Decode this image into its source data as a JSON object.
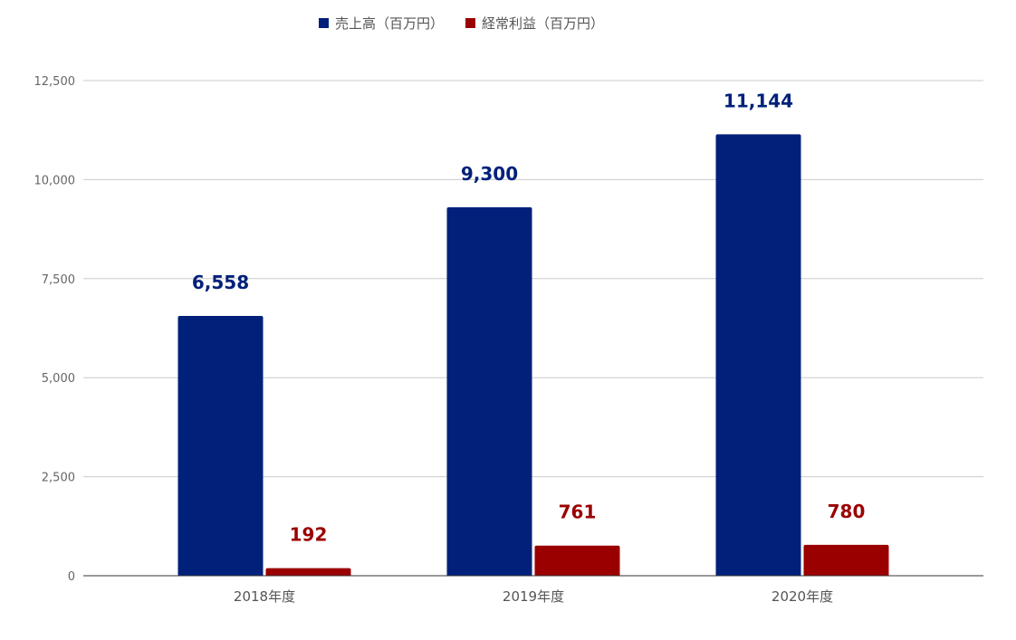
{
  "chart_data": {
    "type": "bar",
    "categories": [
      "2018年度",
      "2019年度",
      "2020年度"
    ],
    "series": [
      {
        "name": "売上高（百万円）",
        "values": [
          6558,
          9300,
          11144
        ],
        "labels": [
          "6,558",
          "9,300",
          "11,144"
        ],
        "color": "#00207a"
      },
      {
        "name": "経常利益（百万円）",
        "values": [
          192,
          761,
          780
        ],
        "labels": [
          "192",
          "761",
          "780"
        ],
        "color": "#9b0000"
      }
    ],
    "yticks": [
      0,
      2500,
      5000,
      7500,
      10000,
      12500
    ],
    "ytick_labels": [
      "0",
      "2,500",
      "5,000",
      "7,500",
      "10,000",
      "12,500"
    ],
    "ylim": [
      0,
      12500
    ],
    "legend_position": "top",
    "grid": true,
    "title": "",
    "xlabel": "",
    "ylabel": ""
  }
}
